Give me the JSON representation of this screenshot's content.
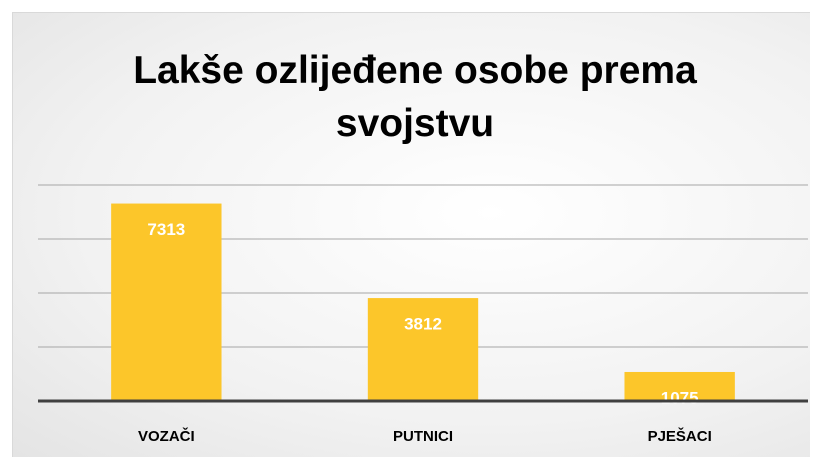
{
  "chart_data": {
    "type": "bar",
    "title": "Lakše ozlijeđene osobe prema svojstvu",
    "categories": [
      "VOZAČI",
      "PUTNICI",
      "PJEŠACI"
    ],
    "values": [
      7313,
      3812,
      1075
    ],
    "color": "#fcc62a",
    "ylim": [
      0,
      8000
    ],
    "yticks": [
      0,
      2000,
      4000,
      6000,
      8000
    ],
    "grid": true
  }
}
